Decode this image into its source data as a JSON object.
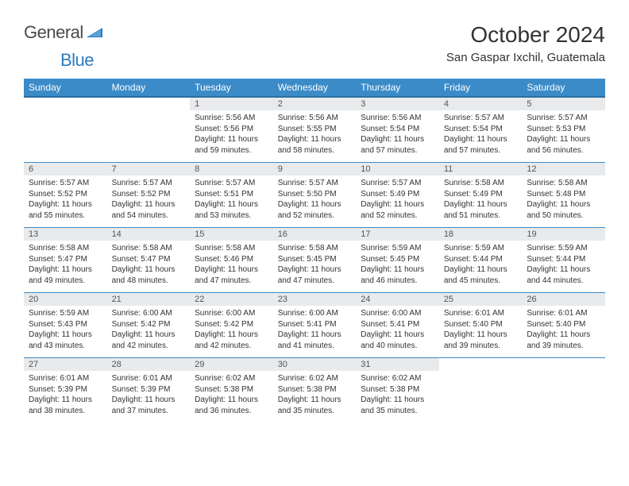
{
  "brand": {
    "text1": "General",
    "text2": "Blue"
  },
  "title": "October 2024",
  "location": "San Gaspar Ixchil, Guatemala",
  "colors": {
    "header_bg": "#3b8bc8",
    "header_border": "#2b6fa3",
    "daynum_bg": "#e8eaec",
    "row_border": "#3b8bc8",
    "text": "#333333",
    "logo_blue": "#2b7bbf"
  },
  "weekdays": [
    "Sunday",
    "Monday",
    "Tuesday",
    "Wednesday",
    "Thursday",
    "Friday",
    "Saturday"
  ],
  "weeks": [
    [
      {
        "blank": true
      },
      {
        "blank": true
      },
      {
        "num": "1",
        "sunrise": "5:56 AM",
        "sunset": "5:56 PM",
        "daylight": "11 hours and 59 minutes."
      },
      {
        "num": "2",
        "sunrise": "5:56 AM",
        "sunset": "5:55 PM",
        "daylight": "11 hours and 58 minutes."
      },
      {
        "num": "3",
        "sunrise": "5:56 AM",
        "sunset": "5:54 PM",
        "daylight": "11 hours and 57 minutes."
      },
      {
        "num": "4",
        "sunrise": "5:57 AM",
        "sunset": "5:54 PM",
        "daylight": "11 hours and 57 minutes."
      },
      {
        "num": "5",
        "sunrise": "5:57 AM",
        "sunset": "5:53 PM",
        "daylight": "11 hours and 56 minutes."
      }
    ],
    [
      {
        "num": "6",
        "sunrise": "5:57 AM",
        "sunset": "5:52 PM",
        "daylight": "11 hours and 55 minutes."
      },
      {
        "num": "7",
        "sunrise": "5:57 AM",
        "sunset": "5:52 PM",
        "daylight": "11 hours and 54 minutes."
      },
      {
        "num": "8",
        "sunrise": "5:57 AM",
        "sunset": "5:51 PM",
        "daylight": "11 hours and 53 minutes."
      },
      {
        "num": "9",
        "sunrise": "5:57 AM",
        "sunset": "5:50 PM",
        "daylight": "11 hours and 52 minutes."
      },
      {
        "num": "10",
        "sunrise": "5:57 AM",
        "sunset": "5:49 PM",
        "daylight": "11 hours and 52 minutes."
      },
      {
        "num": "11",
        "sunrise": "5:58 AM",
        "sunset": "5:49 PM",
        "daylight": "11 hours and 51 minutes."
      },
      {
        "num": "12",
        "sunrise": "5:58 AM",
        "sunset": "5:48 PM",
        "daylight": "11 hours and 50 minutes."
      }
    ],
    [
      {
        "num": "13",
        "sunrise": "5:58 AM",
        "sunset": "5:47 PM",
        "daylight": "11 hours and 49 minutes."
      },
      {
        "num": "14",
        "sunrise": "5:58 AM",
        "sunset": "5:47 PM",
        "daylight": "11 hours and 48 minutes."
      },
      {
        "num": "15",
        "sunrise": "5:58 AM",
        "sunset": "5:46 PM",
        "daylight": "11 hours and 47 minutes."
      },
      {
        "num": "16",
        "sunrise": "5:58 AM",
        "sunset": "5:45 PM",
        "daylight": "11 hours and 47 minutes."
      },
      {
        "num": "17",
        "sunrise": "5:59 AM",
        "sunset": "5:45 PM",
        "daylight": "11 hours and 46 minutes."
      },
      {
        "num": "18",
        "sunrise": "5:59 AM",
        "sunset": "5:44 PM",
        "daylight": "11 hours and 45 minutes."
      },
      {
        "num": "19",
        "sunrise": "5:59 AM",
        "sunset": "5:44 PM",
        "daylight": "11 hours and 44 minutes."
      }
    ],
    [
      {
        "num": "20",
        "sunrise": "5:59 AM",
        "sunset": "5:43 PM",
        "daylight": "11 hours and 43 minutes."
      },
      {
        "num": "21",
        "sunrise": "6:00 AM",
        "sunset": "5:42 PM",
        "daylight": "11 hours and 42 minutes."
      },
      {
        "num": "22",
        "sunrise": "6:00 AM",
        "sunset": "5:42 PM",
        "daylight": "11 hours and 42 minutes."
      },
      {
        "num": "23",
        "sunrise": "6:00 AM",
        "sunset": "5:41 PM",
        "daylight": "11 hours and 41 minutes."
      },
      {
        "num": "24",
        "sunrise": "6:00 AM",
        "sunset": "5:41 PM",
        "daylight": "11 hours and 40 minutes."
      },
      {
        "num": "25",
        "sunrise": "6:01 AM",
        "sunset": "5:40 PM",
        "daylight": "11 hours and 39 minutes."
      },
      {
        "num": "26",
        "sunrise": "6:01 AM",
        "sunset": "5:40 PM",
        "daylight": "11 hours and 39 minutes."
      }
    ],
    [
      {
        "num": "27",
        "sunrise": "6:01 AM",
        "sunset": "5:39 PM",
        "daylight": "11 hours and 38 minutes."
      },
      {
        "num": "28",
        "sunrise": "6:01 AM",
        "sunset": "5:39 PM",
        "daylight": "11 hours and 37 minutes."
      },
      {
        "num": "29",
        "sunrise": "6:02 AM",
        "sunset": "5:38 PM",
        "daylight": "11 hours and 36 minutes."
      },
      {
        "num": "30",
        "sunrise": "6:02 AM",
        "sunset": "5:38 PM",
        "daylight": "11 hours and 35 minutes."
      },
      {
        "num": "31",
        "sunrise": "6:02 AM",
        "sunset": "5:38 PM",
        "daylight": "11 hours and 35 minutes."
      },
      {
        "blank": true
      },
      {
        "blank": true
      }
    ]
  ],
  "labels": {
    "sunrise": "Sunrise:",
    "sunset": "Sunset:",
    "daylight": "Daylight:"
  }
}
